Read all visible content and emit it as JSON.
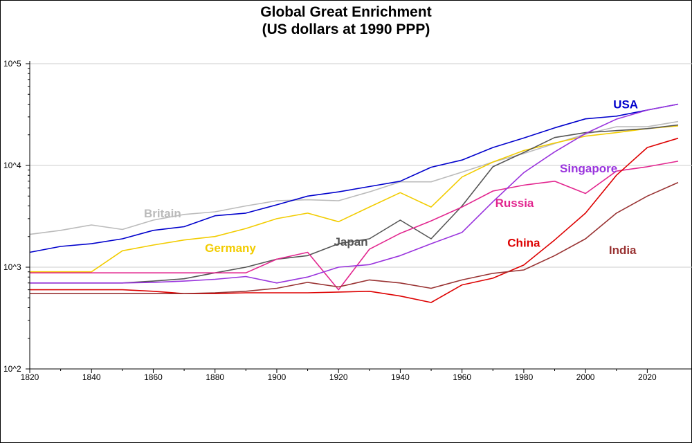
{
  "chart_data": {
    "type": "line",
    "title": "Global Great Enrichment",
    "subtitle": "(US dollars at 1990 PPP)",
    "xlabel": "",
    "ylabel": "",
    "y_scale": "log",
    "xlim": [
      1820,
      2030
    ],
    "ylim": [
      100,
      100000
    ],
    "x_ticks": [
      "1820",
      "1840",
      "1860",
      "1880",
      "1900",
      "1920",
      "1940",
      "1960",
      "1980",
      "2000",
      "2020"
    ],
    "y_ticks": [
      "10^2",
      "10^3",
      "10^4",
      "10^5"
    ],
    "grid": "horizontal",
    "series": [
      {
        "name": "Britain",
        "color": "#bbbbbb",
        "x": [
          1820,
          1830,
          1840,
          1850,
          1860,
          1870,
          1880,
          1890,
          1900,
          1910,
          1920,
          1930,
          1940,
          1950,
          1960,
          1970,
          1980,
          1990,
          2000,
          2010,
          2020,
          2030
        ],
        "y": [
          2100,
          2300,
          2600,
          2350,
          2900,
          3300,
          3500,
          4000,
          4500,
          4600,
          4500,
          5500,
          6900,
          6900,
          8600,
          10800,
          13100,
          16400,
          20300,
          24000,
          24000,
          27000
        ]
      },
      {
        "name": "USA",
        "color": "#0000cc",
        "x": [
          1820,
          1830,
          1840,
          1850,
          1860,
          1870,
          1880,
          1890,
          1900,
          1910,
          1920,
          1930,
          1940,
          1950,
          1960,
          1970,
          1980,
          1990,
          2000,
          2010,
          2020,
          2030
        ],
        "y": [
          1400,
          1600,
          1700,
          1900,
          2300,
          2500,
          3200,
          3400,
          4100,
          5000,
          5500,
          6200,
          7000,
          9600,
          11300,
          15000,
          18600,
          23400,
          28700,
          30500,
          35000,
          40000
        ]
      },
      {
        "name": "Germany",
        "color": "#f2cc00",
        "x": [
          1820,
          1830,
          1840,
          1850,
          1860,
          1870,
          1880,
          1890,
          1900,
          1910,
          1920,
          1930,
          1940,
          1950,
          1960,
          1970,
          1980,
          1990,
          2000,
          2010,
          2020,
          2030
        ],
        "y": [
          900,
          900,
          900,
          1450,
          1650,
          1850,
          2000,
          2400,
          3000,
          3400,
          2800,
          3900,
          5400,
          3900,
          7700,
          10800,
          14000,
          16600,
          19400,
          21000,
          23000,
          24500
        ]
      },
      {
        "name": "Japan",
        "color": "#555555",
        "x": [
          1820,
          1830,
          1840,
          1850,
          1860,
          1870,
          1880,
          1890,
          1900,
          1910,
          1920,
          1930,
          1940,
          1950,
          1960,
          1970,
          1980,
          1990,
          2000,
          2010,
          2020,
          2030
        ],
        "y": [
          700,
          700,
          700,
          700,
          730,
          770,
          880,
          1000,
          1200,
          1300,
          1700,
          1900,
          2900,
          1900,
          4000,
          9700,
          13400,
          18800,
          21000,
          22000,
          23000,
          25000
        ]
      },
      {
        "name": "Russia",
        "color": "#e2268f",
        "x": [
          1820,
          1830,
          1840,
          1850,
          1860,
          1870,
          1880,
          1890,
          1900,
          1910,
          1920,
          1930,
          1940,
          1950,
          1960,
          1970,
          1980,
          1990,
          2000,
          2010,
          2020,
          2030
        ],
        "y": [
          880,
          880,
          880,
          880,
          880,
          880,
          880,
          880,
          1200,
          1400,
          600,
          1500,
          2150,
          2850,
          3900,
          5600,
          6400,
          7000,
          5300,
          8800,
          9700,
          11000
        ]
      },
      {
        "name": "Singapore",
        "color": "#9933dd",
        "x": [
          1820,
          1830,
          1840,
          1850,
          1860,
          1870,
          1880,
          1890,
          1900,
          1910,
          1920,
          1930,
          1940,
          1950,
          1960,
          1970,
          1980,
          1990,
          2000,
          2010,
          2020,
          2030
        ],
        "y": [
          700,
          700,
          700,
          700,
          710,
          730,
          760,
          810,
          700,
          800,
          1000,
          1060,
          1300,
          1700,
          2200,
          4400,
          8500,
          13600,
          20600,
          28500,
          35000,
          40000
        ]
      },
      {
        "name": "China",
        "color": "#dd0000",
        "x": [
          1820,
          1830,
          1840,
          1850,
          1860,
          1870,
          1880,
          1890,
          1900,
          1910,
          1920,
          1930,
          1940,
          1950,
          1960,
          1970,
          1980,
          1990,
          2000,
          2010,
          2020,
          2030
        ],
        "y": [
          600,
          600,
          600,
          600,
          580,
          550,
          550,
          560,
          560,
          560,
          570,
          580,
          520,
          450,
          670,
          780,
          1050,
          1850,
          3400,
          8000,
          15000,
          18500
        ]
      },
      {
        "name": "India",
        "color": "#993333",
        "x": [
          1820,
          1830,
          1840,
          1850,
          1860,
          1870,
          1880,
          1890,
          1900,
          1910,
          1920,
          1930,
          1940,
          1950,
          1960,
          1970,
          1980,
          1990,
          2000,
          2010,
          2020,
          2030
        ],
        "y": [
          550,
          550,
          550,
          550,
          550,
          550,
          560,
          580,
          620,
          710,
          640,
          750,
          700,
          620,
          750,
          870,
          940,
          1300,
          1900,
          3400,
          5000,
          6800
        ]
      }
    ]
  }
}
